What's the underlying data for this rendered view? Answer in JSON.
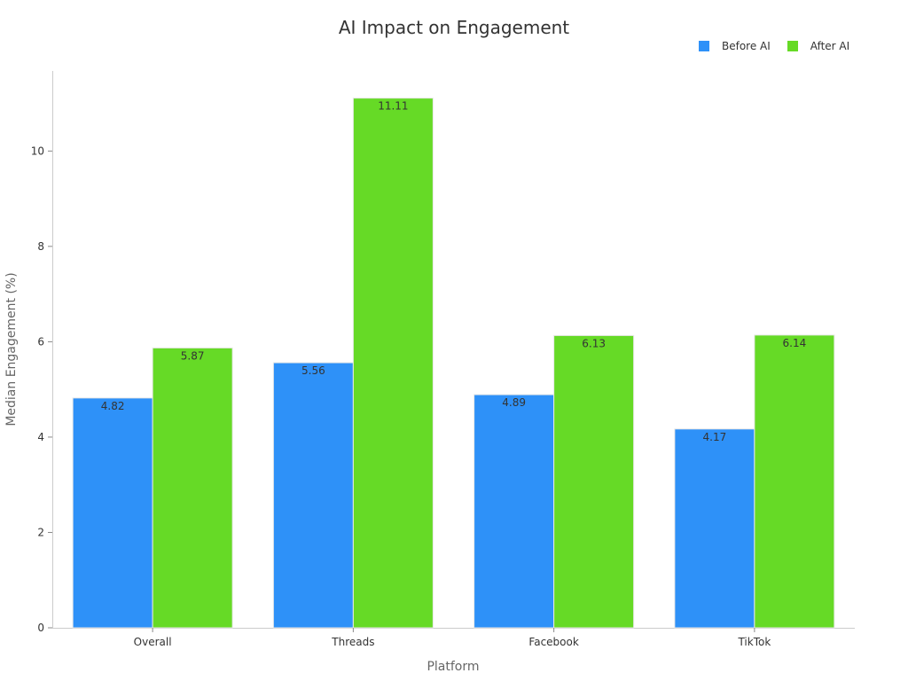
{
  "chart_data": {
    "type": "bar",
    "title": "AI Impact on Engagement",
    "xlabel": "Platform",
    "ylabel": "Median Engagement (%)",
    "categories": [
      "Overall",
      "Threads",
      "Facebook",
      "TikTok"
    ],
    "series": [
      {
        "name": "Before AI",
        "color": "#2e91f8",
        "values": [
          4.82,
          5.56,
          4.89,
          4.17
        ],
        "labels": [
          "4.82",
          "5.56",
          "4.89",
          "4.17"
        ]
      },
      {
        "name": "After AI",
        "color": "#66da26",
        "values": [
          5.87,
          11.11,
          6.13,
          6.14
        ],
        "labels": [
          "5.87",
          "11.11",
          "6.13",
          "6.14"
        ]
      }
    ],
    "ylim": [
      0,
      11.68
    ],
    "yticks": [
      0,
      2,
      4,
      6,
      8,
      10
    ],
    "ytick_labels": [
      "0",
      "2",
      "4",
      "6",
      "8",
      "10"
    ],
    "legend_position": "top-right",
    "grid": false
  }
}
